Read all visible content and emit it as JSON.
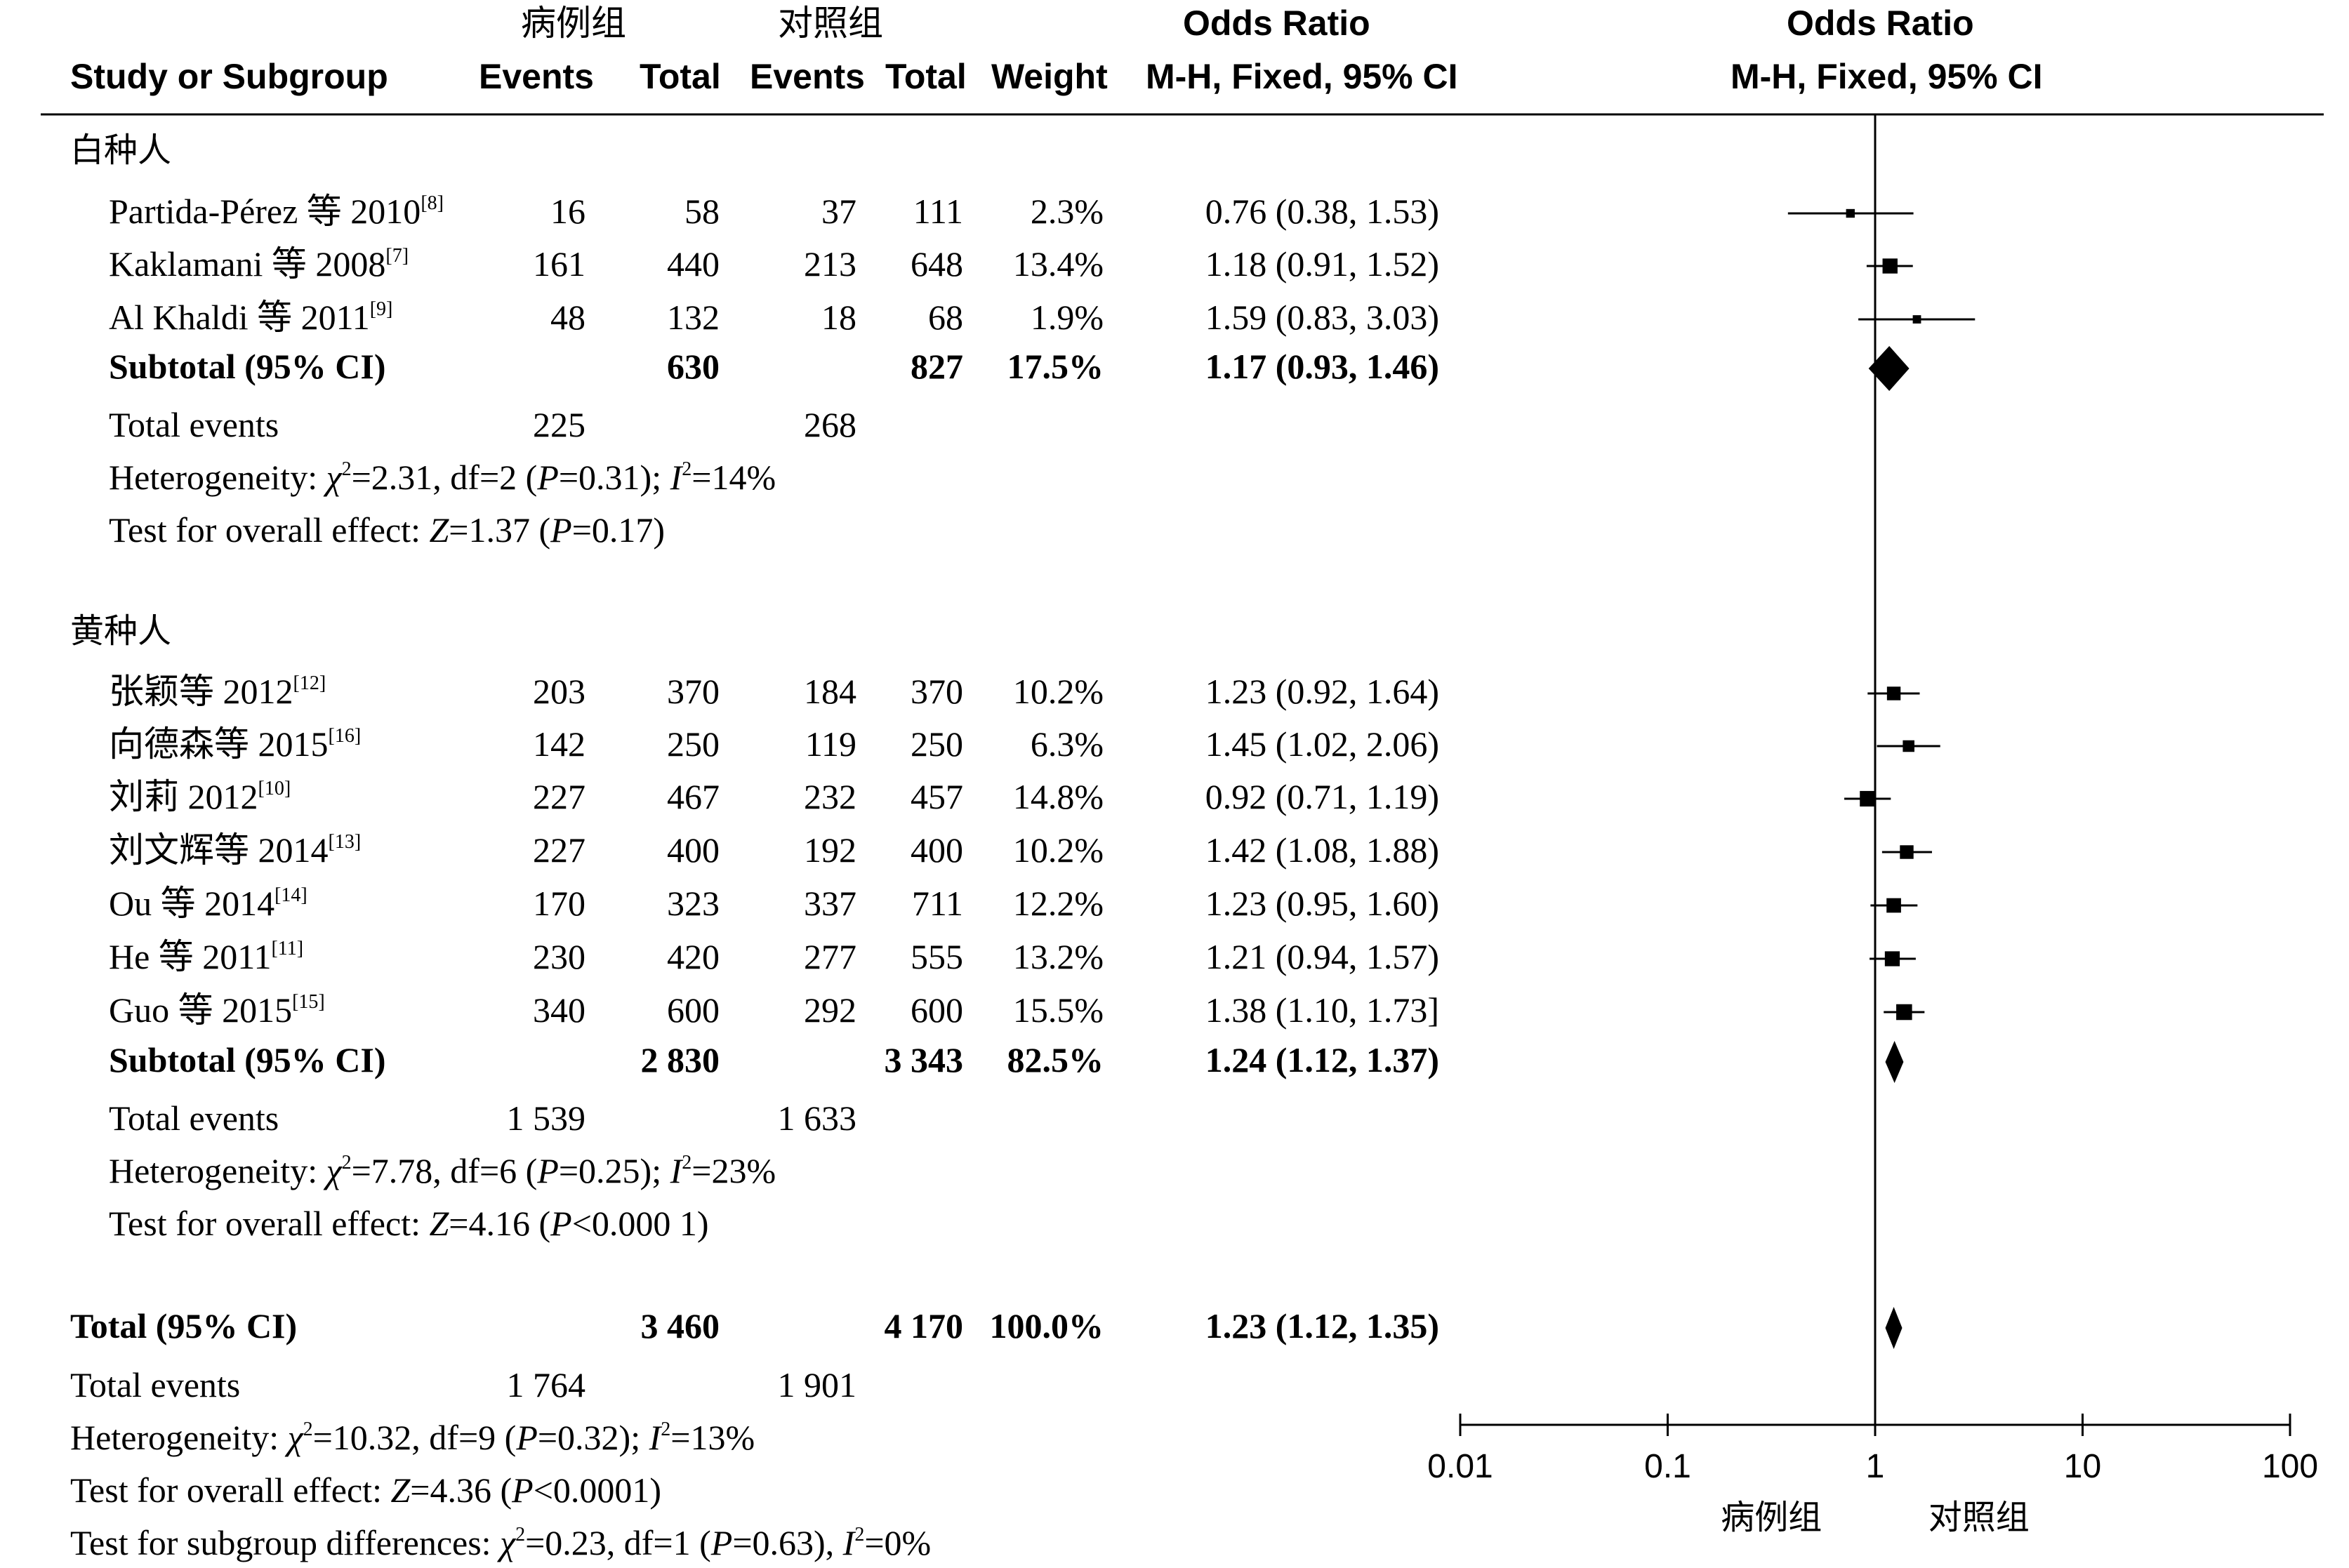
{
  "header": {
    "case_group": "病例组",
    "control_group": "对照组",
    "odds_ratio": "Odds Ratio",
    "study_or_subgroup": "Study or Subgroup",
    "events": "Events",
    "total": "Total",
    "weight": "Weight",
    "method": "M-H, Fixed, 95% CI"
  },
  "chart_data": {
    "type": "forest",
    "scale": "log",
    "axis_ticks": [
      "0.01",
      "0.1",
      "1",
      "10",
      "100"
    ],
    "axis_tick_values": [
      0.01,
      0.1,
      1,
      10,
      100
    ],
    "xlim": [
      0.01,
      100
    ],
    "left_favours": "病例组",
    "right_favours": "对照组",
    "subgroups": [
      {
        "name": "白种人",
        "studies": [
          {
            "study": "Partida-Pérez 等 2010",
            "ref": "[8]",
            "case_events": "16",
            "case_total": "58",
            "ctrl_events": "37",
            "ctrl_total": "111",
            "weight": "2.3%",
            "ci_text": "0.76 (0.38, 1.53)",
            "or": 0.76,
            "lo": 0.38,
            "hi": 1.53,
            "w": 2.3
          },
          {
            "study": "Kaklamani 等 2008",
            "ref": "[7]",
            "case_events": "161",
            "case_total": "440",
            "ctrl_events": "213",
            "ctrl_total": "648",
            "weight": "13.4%",
            "ci_text": "1.18 (0.91, 1.52)",
            "or": 1.18,
            "lo": 0.91,
            "hi": 1.52,
            "w": 13.4
          },
          {
            "study": "Al Khaldi 等 2011",
            "ref": "[9]",
            "case_events": "48",
            "case_total": "132",
            "ctrl_events": "18",
            "ctrl_total": "68",
            "weight": "1.9%",
            "ci_text": "1.59 (0.83, 3.03)",
            "or": 1.59,
            "lo": 0.83,
            "hi": 3.03,
            "w": 1.9
          }
        ],
        "subtotal": {
          "label": "Subtotal (95% CI)",
          "case_total": "630",
          "ctrl_total": "827",
          "weight": "17.5%",
          "ci_text": "1.17 (0.93, 1.46)",
          "or": 1.17,
          "lo": 0.93,
          "hi": 1.46
        },
        "total_events": {
          "label": "Total events",
          "case": "225",
          "ctrl": "268"
        },
        "heterogeneity": {
          "prefix": "Heterogeneity: ",
          "chi": "χ",
          "chi_sup": "2",
          "chi_val": "=2.31, df=2 (",
          "p": "P",
          "p_val": "=0.31); ",
          "i": "I",
          "i_sup": "2",
          "i_val": "=14%"
        },
        "overall": {
          "prefix": "Test for overall effect: ",
          "z": "Z",
          "z_val": "=1.37 (",
          "p": "P",
          "p_val": "=0.17)"
        }
      },
      {
        "name": "黄种人",
        "studies": [
          {
            "study": "张颖等 2012",
            "ref": "[12]",
            "case_events": "203",
            "case_total": "370",
            "ctrl_events": "184",
            "ctrl_total": "370",
            "weight": "10.2%",
            "ci_text": "1.23 (0.92, 1.64)",
            "or": 1.23,
            "lo": 0.92,
            "hi": 1.64,
            "w": 10.2
          },
          {
            "study": "向德森等 2015",
            "ref": "[16]",
            "case_events": "142",
            "case_total": "250",
            "ctrl_events": "119",
            "ctrl_total": "250",
            "weight": "6.3%",
            "ci_text": "1.45 (1.02, 2.06)",
            "or": 1.45,
            "lo": 1.02,
            "hi": 2.06,
            "w": 6.3
          },
          {
            "study": "刘莉 2012",
            "ref": "[10]",
            "case_events": "227",
            "case_total": "467",
            "ctrl_events": "232",
            "ctrl_total": "457",
            "weight": "14.8%",
            "ci_text": "0.92 (0.71, 1.19)",
            "or": 0.92,
            "lo": 0.71,
            "hi": 1.19,
            "w": 14.8
          },
          {
            "study": "刘文辉等 2014",
            "ref": "[13]",
            "case_events": "227",
            "case_total": "400",
            "ctrl_events": "192",
            "ctrl_total": "400",
            "weight": "10.2%",
            "ci_text": "1.42 (1.08, 1.88)",
            "or": 1.42,
            "lo": 1.08,
            "hi": 1.88,
            "w": 10.2
          },
          {
            "study": "Ou 等 2014",
            "ref": "[14]",
            "case_events": "170",
            "case_total": "323",
            "ctrl_events": "337",
            "ctrl_total": "711",
            "weight": "12.2%",
            "ci_text": "1.23 (0.95, 1.60)",
            "or": 1.23,
            "lo": 0.95,
            "hi": 1.6,
            "w": 12.2
          },
          {
            "study": "He 等 2011",
            "ref": "[11]",
            "case_events": "230",
            "case_total": "420",
            "ctrl_events": "277",
            "ctrl_total": "555",
            "weight": "13.2%",
            "ci_text": "1.21 (0.94, 1.57)",
            "or": 1.21,
            "lo": 0.94,
            "hi": 1.57,
            "w": 13.2
          },
          {
            "study": "Guo 等 2015",
            "ref": "[15]",
            "case_events": "340",
            "case_total": "600",
            "ctrl_events": "292",
            "ctrl_total": "600",
            "weight": "15.5%",
            "ci_text": "1.38 (1.10, 1.73]",
            "or": 1.38,
            "lo": 1.1,
            "hi": 1.73,
            "w": 15.5
          }
        ],
        "subtotal": {
          "label": "Subtotal (95% CI)",
          "case_total": "2 830",
          "ctrl_total": "3 343",
          "weight": "82.5%",
          "ci_text": "1.24 (1.12, 1.37)",
          "or": 1.24,
          "lo": 1.12,
          "hi": 1.37
        },
        "total_events": {
          "label": "Total events",
          "case": "1 539",
          "ctrl": "1 633"
        },
        "heterogeneity": {
          "prefix": "Heterogeneity: ",
          "chi": "χ",
          "chi_sup": "2",
          "chi_val": "=7.78, df=6 (",
          "p": "P",
          "p_val": "=0.25); ",
          "i": "I",
          "i_sup": "2",
          "i_val": "=23%"
        },
        "overall": {
          "prefix": "Test for overall effect: ",
          "z": "Z",
          "z_val": "=4.16 (",
          "p": "P",
          "p_val": "<0.000 1)"
        }
      }
    ],
    "total": {
      "label": "Total (95% CI)",
      "case_total": "3 460",
      "ctrl_total": "4 170",
      "weight": "100.0%",
      "ci_text": "1.23 (1.12, 1.35)",
      "or": 1.23,
      "lo": 1.12,
      "hi": 1.35
    },
    "total_events": {
      "label": "Total events",
      "case": "1 764",
      "ctrl": "1 901"
    },
    "heterogeneity": {
      "prefix": "Heterogeneity: ",
      "chi": "χ",
      "chi_sup": "2",
      "chi_val": "=10.32, df=9 (",
      "p": "P",
      "p_val": "=0.32); ",
      "i": "I",
      "i_sup": "2",
      "i_val": "=13%"
    },
    "overall": {
      "prefix": "Test for overall effect: ",
      "z": "Z",
      "z_val": "=4.36 (",
      "p": "P",
      "p_val": "<0.0001)"
    },
    "subgroup_diff": {
      "prefix": "Test for subgroup differences: ",
      "chi": "χ",
      "chi_sup": "2",
      "chi_val": "=0.23, df=1 (",
      "p": "P",
      "p_val": "=0.63), ",
      "i": "I",
      "i_sup": "2",
      "i_val": "=0%"
    }
  }
}
